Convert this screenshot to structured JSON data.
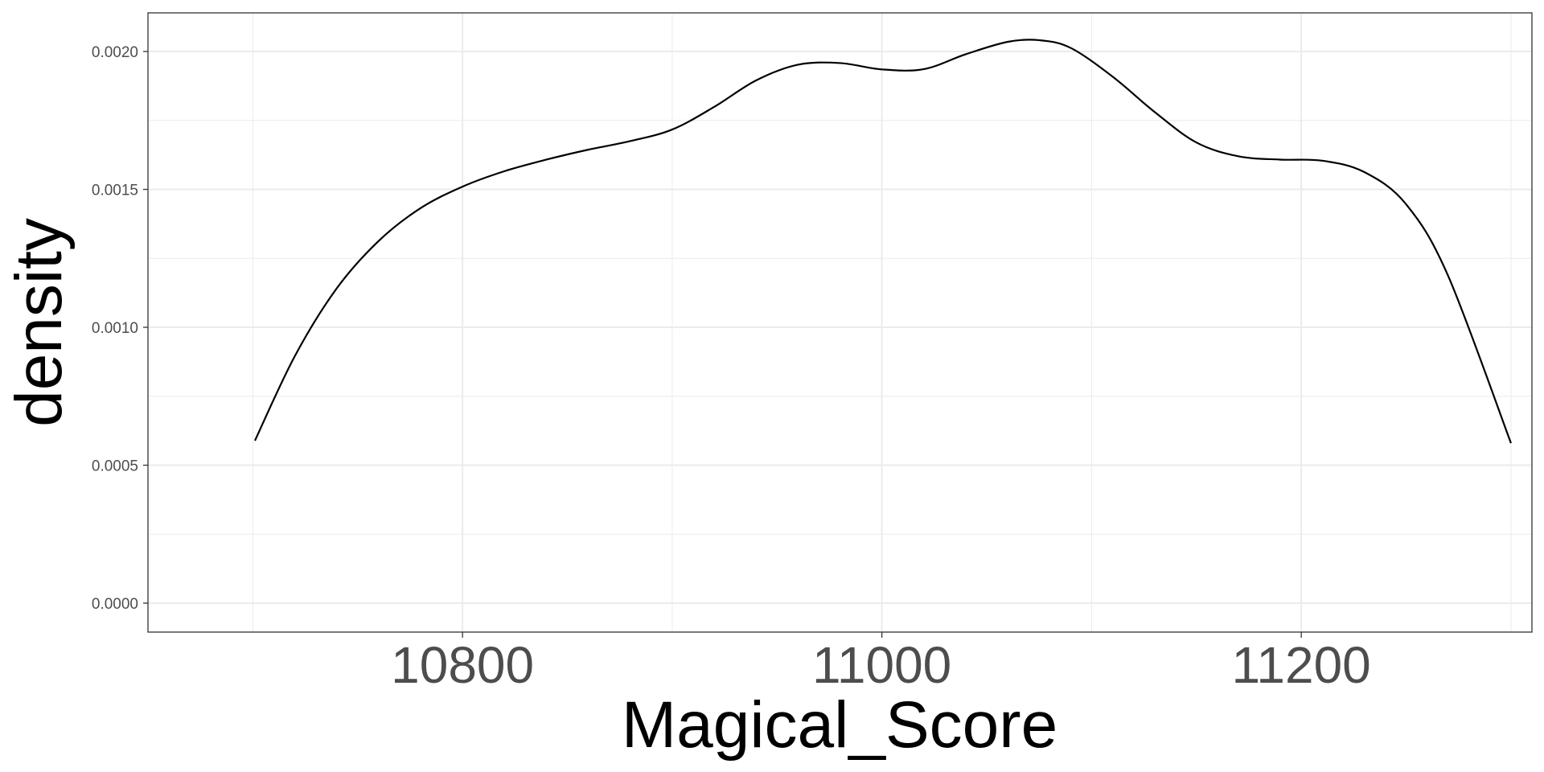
{
  "chart_data": {
    "type": "line",
    "title": "",
    "xlabel": "Magical_Score",
    "ylabel": "density",
    "xlim": [
      10650,
      11310
    ],
    "ylim": [
      -0.000105,
      0.00214
    ],
    "x_ticks": [
      10800,
      11000,
      11200
    ],
    "x_tick_labels": [
      "10800",
      "11000",
      "11200"
    ],
    "x_minor_ticks": [
      10700,
      10900,
      11100,
      11300
    ],
    "y_ticks": [
      0.0,
      0.0005,
      0.001,
      0.0015,
      0.002
    ],
    "y_tick_labels": [
      "0.0000",
      "0.0005",
      "0.0010",
      "0.0015",
      "0.0020"
    ],
    "y_minor_ticks": [
      0.00025,
      0.00075,
      0.00125,
      0.00175
    ],
    "grid": true,
    "legend": "none",
    "colors": {
      "line": "#000000",
      "grid": "#ebebeb",
      "panel_border": "#333333",
      "tick_label": "#4d4d4d"
    },
    "series": [
      {
        "x": [
          10701,
          10720,
          10740,
          10760,
          10780,
          10800,
          10820,
          10840,
          10860,
          10880,
          10900,
          10920,
          10940,
          10960,
          10980,
          11000,
          11020,
          11040,
          11060,
          11075,
          11090,
          11110,
          11130,
          11150,
          11170,
          11190,
          11210,
          11230,
          11250,
          11270,
          11300
        ],
        "y": [
          0.000589,
          0.000895,
          0.001141,
          0.001313,
          0.001432,
          0.00151,
          0.001566,
          0.001608,
          0.001644,
          0.001675,
          0.001717,
          0.001799,
          0.001895,
          0.001952,
          0.001958,
          0.001935,
          0.001936,
          0.00199,
          0.002035,
          0.002041,
          0.002013,
          0.001909,
          0.001781,
          0.00167,
          0.00162,
          0.001608,
          0.001604,
          0.001563,
          0.001446,
          0.001187,
          0.00058
        ]
      }
    ]
  }
}
